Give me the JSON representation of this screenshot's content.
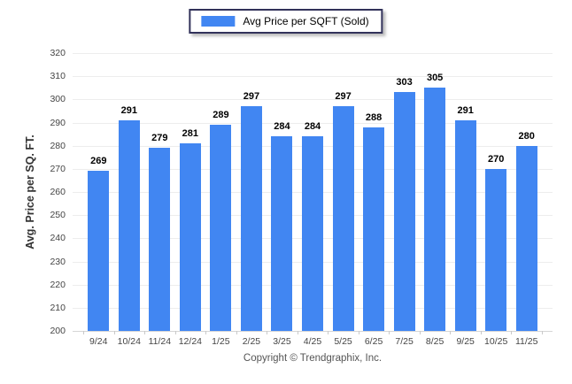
{
  "legend": {
    "label": "Avg Price per SQFT (Sold)"
  },
  "footer": {
    "copyright": "Copyright © Trendgraphix, Inc."
  },
  "chart_data": {
    "type": "bar",
    "title": "",
    "series_name": "Avg Price per SQFT (Sold)",
    "categories": [
      "9/24",
      "10/24",
      "11/24",
      "12/24",
      "1/25",
      "2/25",
      "3/25",
      "4/25",
      "5/25",
      "6/25",
      "7/25",
      "8/25",
      "9/25",
      "10/25",
      "11/25"
    ],
    "values": [
      269,
      291,
      279,
      281,
      289,
      297,
      284,
      284,
      297,
      288,
      303,
      305,
      291,
      270,
      280
    ],
    "xlabel": "",
    "ylabel": "Avg. Price per SQ. FT.",
    "ylim": [
      200,
      320
    ],
    "ytick_step": 10,
    "grid": true,
    "legend_position": "top-center",
    "colors": {
      "bar": "#4186f2",
      "value_label": "#000000",
      "axis_text": "#444444",
      "gridline": "#ededed",
      "baseline": "#d6d6d6"
    }
  }
}
